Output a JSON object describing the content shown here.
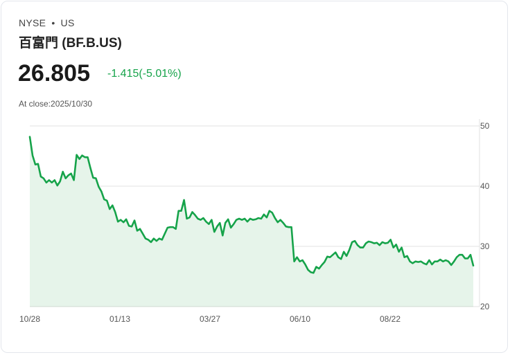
{
  "header": {
    "exchange": "NYSE",
    "separator": "•",
    "region": "US",
    "name": "百富門 (BF.B.US)",
    "price": "26.805",
    "change": "-1.415(-5.01%)",
    "close_label": "At close:2025/10/30"
  },
  "colors": {
    "line": "#16a34a",
    "fill": "#e6f4ea",
    "grid": "#e2e2e2"
  },
  "chart_data": {
    "type": "area",
    "title": "",
    "xlabel": "",
    "ylabel": "",
    "ylim": [
      20,
      50
    ],
    "yticks": [
      "50",
      "40",
      "30",
      "20"
    ],
    "ytick_values": [
      50,
      40,
      30,
      20
    ],
    "xticks": [
      "10/28",
      "01/13",
      "03/27",
      "06/10",
      "08/22"
    ],
    "grid": true,
    "values": [
      48.2,
      45.1,
      43.6,
      43.7,
      41.6,
      41.3,
      40.6,
      41.0,
      40.6,
      41.0,
      40.1,
      40.8,
      42.4,
      41.3,
      41.8,
      42.1,
      41.0,
      45.2,
      44.5,
      45.1,
      44.8,
      44.8,
      43.0,
      41.4,
      41.3,
      39.9,
      39.1,
      37.8,
      37.6,
      36.2,
      36.8,
      35.7,
      34.1,
      34.4,
      34.0,
      34.5,
      33.4,
      33.3,
      34.3,
      32.6,
      32.9,
      32.1,
      31.3,
      31.1,
      30.7,
      31.3,
      30.9,
      31.3,
      31.1,
      32.1,
      33.1,
      33.2,
      33.2,
      32.9,
      35.9,
      35.9,
      37.7,
      34.6,
      34.8,
      35.7,
      35.2,
      34.6,
      34.4,
      34.7,
      34.1,
      33.7,
      34.4,
      32.4,
      33.3,
      33.9,
      31.8,
      33.9,
      34.5,
      33.1,
      33.7,
      34.4,
      34.6,
      34.4,
      34.6,
      34.1,
      34.6,
      34.4,
      34.5,
      34.7,
      34.6,
      35.3,
      34.8,
      35.9,
      35.6,
      34.7,
      34.0,
      34.4,
      33.9,
      33.3,
      33.2,
      33.2,
      27.5,
      28.2,
      27.5,
      27.7,
      27.0,
      26.1,
      25.7,
      25.6,
      26.6,
      26.3,
      26.9,
      27.4,
      28.3,
      28.2,
      28.6,
      29.0,
      28.2,
      27.9,
      29.1,
      28.4,
      29.4,
      30.7,
      30.9,
      30.2,
      29.8,
      29.8,
      30.5,
      30.8,
      30.7,
      30.5,
      30.6,
      30.2,
      30.7,
      30.5,
      30.6,
      31.1,
      29.8,
      30.3,
      29.1,
      29.8,
      28.2,
      28.4,
      27.5,
      27.2,
      27.5,
      27.4,
      27.5,
      27.2,
      27.0,
      27.7,
      27.0,
      27.5,
      27.5,
      27.8,
      27.5,
      27.7,
      27.5,
      26.9,
      27.5,
      28.2,
      28.6,
      28.6,
      28.0,
      28.0,
      28.6,
      26.8
    ]
  }
}
